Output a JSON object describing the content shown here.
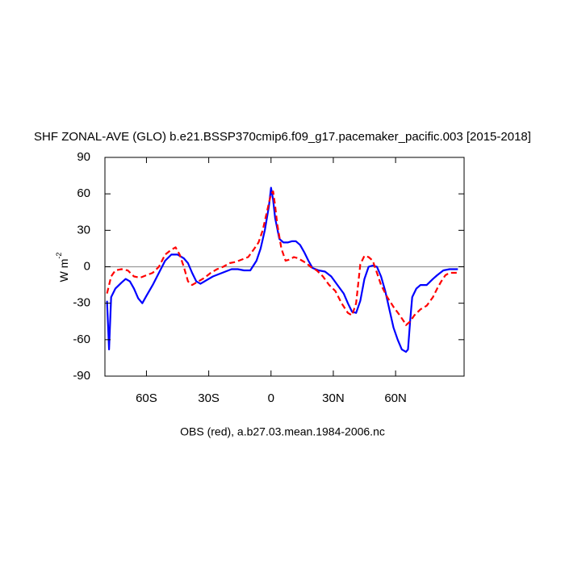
{
  "chart_data": {
    "type": "line",
    "title": "SHF ZONAL-AVE (GLO) b.e21.BSSP370cmip6.f09_g17.pacemaker_pacific.003 [2015-2018]",
    "ylabel": {
      "base": "W m",
      "sup": "-2"
    },
    "footer": "OBS (red), a.b27.03.mean.1984-2006.nc",
    "xlim": [
      -80,
      93
    ],
    "ylim": [
      -90,
      90
    ],
    "xticks": [
      {
        "value": -60,
        "label": "60S"
      },
      {
        "value": -30,
        "label": "30S"
      },
      0,
      {
        "value": 30,
        "label": "30N"
      },
      {
        "value": 60,
        "label": "60N"
      }
    ],
    "yticks": [
      -90,
      -60,
      -30,
      0,
      30,
      60,
      90
    ],
    "hline": 0,
    "series": [
      {
        "color": "#0000ff",
        "dash": false,
        "x": [
          -79,
          -78,
          -77,
          -75,
          -72,
          -70,
          -68,
          -66,
          -64,
          -62,
          -60,
          -57,
          -54,
          -51,
          -48,
          -45,
          -42,
          -40,
          -38,
          -36,
          -34,
          -31,
          -28,
          -25,
          -22,
          -19,
          -16,
          -13,
          -10,
          -7,
          -5,
          -3,
          -1,
          0,
          1,
          2,
          4,
          6,
          8,
          10,
          12,
          14,
          16,
          18,
          20,
          23,
          26,
          29,
          32,
          35,
          37,
          39,
          41,
          43,
          45,
          47,
          49,
          51,
          53,
          55,
          57,
          59,
          61,
          63,
          65,
          66,
          67,
          68,
          70,
          72,
          75,
          78,
          80,
          83,
          86,
          90
        ],
        "values": [
          -28,
          -68,
          -25,
          -18,
          -13,
          -10,
          -12,
          -18,
          -26,
          -30,
          -24,
          -15,
          -5,
          5,
          10,
          10,
          7,
          3,
          -5,
          -12,
          -14,
          -11,
          -8,
          -6,
          -4,
          -2,
          -2,
          -3,
          -3,
          5,
          15,
          30,
          50,
          65,
          55,
          40,
          23,
          20,
          20,
          21,
          21,
          18,
          12,
          5,
          -1,
          -3,
          -4,
          -8,
          -15,
          -22,
          -30,
          -37,
          -38,
          -28,
          -10,
          0,
          1,
          0,
          -8,
          -20,
          -35,
          -50,
          -60,
          -68,
          -70,
          -68,
          -45,
          -25,
          -18,
          -15,
          -15,
          -10,
          -7,
          -3,
          -2,
          -2
        ]
      },
      {
        "color": "#ff0000",
        "dash": true,
        "x": [
          -79,
          -77,
          -75,
          -72,
          -69,
          -66,
          -63,
          -60,
          -57,
          -54,
          -51,
          -48,
          -46,
          -44,
          -42,
          -40,
          -38,
          -35,
          -32,
          -29,
          -26,
          -23,
          -20,
          -17,
          -14,
          -11,
          -8,
          -6,
          -4,
          -2,
          0,
          1,
          2,
          3,
          5,
          7,
          9,
          11,
          13,
          15,
          17,
          19,
          22,
          25,
          28,
          31,
          34,
          37,
          39,
          41,
          43,
          45,
          47,
          49,
          51,
          53,
          56,
          59,
          62,
          64,
          65,
          67,
          69,
          72,
          75,
          78,
          80,
          82,
          84,
          86,
          90
        ],
        "values": [
          -22,
          -8,
          -3,
          -2,
          -3,
          -8,
          -9,
          -7,
          -5,
          0,
          10,
          14,
          16,
          10,
          0,
          -12,
          -15,
          -12,
          -9,
          -5,
          -2,
          0,
          3,
          4,
          6,
          8,
          15,
          20,
          30,
          45,
          60,
          62,
          50,
          35,
          15,
          5,
          6,
          8,
          7,
          5,
          3,
          0,
          -3,
          -8,
          -15,
          -20,
          -30,
          -38,
          -40,
          -30,
          2,
          9,
          8,
          5,
          -5,
          -15,
          -25,
          -33,
          -40,
          -45,
          -48,
          -45,
          -40,
          -35,
          -32,
          -25,
          -18,
          -12,
          -7,
          -5,
          -5
        ]
      }
    ]
  }
}
